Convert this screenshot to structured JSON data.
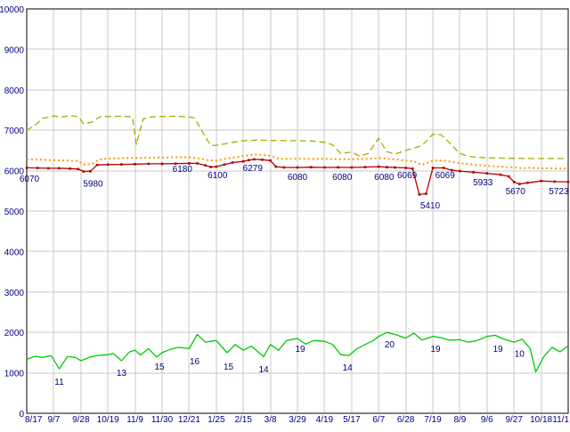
{
  "chart_data": {
    "type": "line",
    "title": "",
    "ylim": [
      0,
      10000
    ],
    "grid": true,
    "grid_color": "#c8c8c8",
    "axis_color": "#000000",
    "label_color": "#000080",
    "tick_label_color": "#000080",
    "y_tick_labels": [
      "10000",
      "9000",
      "8000",
      "7000",
      "6000",
      "5000",
      "4000",
      "3000",
      "2000",
      "1000",
      "0"
    ],
    "x_tick_labels": [
      "8/17",
      "9/7",
      "9/28",
      "10/19",
      "11/9",
      "11/30",
      "12/21",
      "1/25",
      "2/15",
      "3/8",
      "3/29",
      "4/19",
      "5/17",
      "6/7",
      "6/28",
      "7/19",
      "8/9",
      "9/6",
      "9/27",
      "10/18",
      "11/1"
    ],
    "series": [
      {
        "name": "upper-dashed-olive",
        "color": "#aaaa00",
        "style": "dashed",
        "width": 1.3,
        "markers": false,
        "points": [
          [
            0,
            7000
          ],
          [
            0.3,
            7120
          ],
          [
            0.6,
            7300
          ],
          [
            1,
            7350
          ],
          [
            1.3,
            7330
          ],
          [
            1.6,
            7360
          ],
          [
            1.9,
            7340
          ],
          [
            2.1,
            7160
          ],
          [
            2.4,
            7200
          ],
          [
            2.7,
            7330
          ],
          [
            3,
            7340
          ],
          [
            3.5,
            7345
          ],
          [
            3.9,
            7330
          ],
          [
            4.05,
            6650
          ],
          [
            4.3,
            7280
          ],
          [
            4.6,
            7330
          ],
          [
            5,
            7340
          ],
          [
            5.5,
            7345
          ],
          [
            6,
            7330
          ],
          [
            6.2,
            7300
          ],
          [
            6.5,
            6950
          ],
          [
            6.8,
            6620
          ],
          [
            7,
            6630
          ],
          [
            7.3,
            6660
          ],
          [
            7.6,
            6700
          ],
          [
            8,
            6740
          ],
          [
            8.5,
            6755
          ],
          [
            9,
            6750
          ],
          [
            9.5,
            6745
          ],
          [
            10,
            6740
          ],
          [
            10.5,
            6735
          ],
          [
            11,
            6700
          ],
          [
            11.3,
            6640
          ],
          [
            11.6,
            6420
          ],
          [
            12,
            6460
          ],
          [
            12.3,
            6360
          ],
          [
            12.6,
            6420
          ],
          [
            13,
            6800
          ],
          [
            13.3,
            6470
          ],
          [
            13.6,
            6410
          ],
          [
            14,
            6500
          ],
          [
            14.3,
            6560
          ],
          [
            14.6,
            6620
          ],
          [
            15,
            6900
          ],
          [
            15.3,
            6890
          ],
          [
            15.6,
            6700
          ],
          [
            16,
            6420
          ],
          [
            16.3,
            6360
          ],
          [
            16.6,
            6330
          ],
          [
            17,
            6320
          ],
          [
            17.5,
            6310
          ],
          [
            18,
            6305
          ],
          [
            18.5,
            6300
          ],
          [
            19,
            6300
          ],
          [
            19.5,
            6300
          ],
          [
            20,
            6300
          ]
        ]
      },
      {
        "name": "mid-dotted-orange",
        "color": "#ff9900",
        "style": "dotted",
        "width": 2,
        "markers": false,
        "points": [
          [
            0,
            6280
          ],
          [
            0.5,
            6270
          ],
          [
            1,
            6260
          ],
          [
            1.5,
            6250
          ],
          [
            1.9,
            6240
          ],
          [
            2.1,
            6150
          ],
          [
            2.4,
            6160
          ],
          [
            2.7,
            6280
          ],
          [
            3,
            6300
          ],
          [
            3.5,
            6310
          ],
          [
            4,
            6310
          ],
          [
            4.5,
            6320
          ],
          [
            5,
            6325
          ],
          [
            5.5,
            6330
          ],
          [
            6,
            6330
          ],
          [
            6.4,
            6300
          ],
          [
            6.7,
            6260
          ],
          [
            7,
            6250
          ],
          [
            7.4,
            6300
          ],
          [
            7.7,
            6330
          ],
          [
            8,
            6360
          ],
          [
            8.4,
            6400
          ],
          [
            8.7,
            6390
          ],
          [
            9,
            6370
          ],
          [
            9.3,
            6300
          ],
          [
            9.6,
            6290
          ],
          [
            10,
            6295
          ],
          [
            10.5,
            6290
          ],
          [
            11,
            6290
          ],
          [
            11.5,
            6285
          ],
          [
            12,
            6285
          ],
          [
            12.5,
            6290
          ],
          [
            13,
            6310
          ],
          [
            13.4,
            6290
          ],
          [
            13.7,
            6270
          ],
          [
            14,
            6250
          ],
          [
            14.3,
            6230
          ],
          [
            14.6,
            6140
          ],
          [
            15,
            6250
          ],
          [
            15.4,
            6250
          ],
          [
            15.7,
            6220
          ],
          [
            16,
            6180
          ],
          [
            16.5,
            6150
          ],
          [
            17,
            6120
          ],
          [
            17.5,
            6100
          ],
          [
            18,
            6080
          ],
          [
            18.3,
            6060
          ],
          [
            18.6,
            6070
          ],
          [
            19,
            6060
          ],
          [
            19.5,
            6055
          ],
          [
            20,
            6050
          ]
        ]
      },
      {
        "name": "main-dark-red",
        "color": "#b30000",
        "style": "solid",
        "width": 1.3,
        "markers": true,
        "points": [
          [
            0,
            6070
          ],
          [
            0.4,
            6065
          ],
          [
            0.8,
            6060
          ],
          [
            1.2,
            6060
          ],
          [
            1.6,
            6050
          ],
          [
            1.9,
            6040
          ],
          [
            2.1,
            5980
          ],
          [
            2.35,
            5985
          ],
          [
            2.6,
            6140
          ],
          [
            3,
            6150
          ],
          [
            3.5,
            6155
          ],
          [
            4,
            6160
          ],
          [
            4.5,
            6170
          ],
          [
            5,
            6170
          ],
          [
            5.5,
            6175
          ],
          [
            6,
            6180
          ],
          [
            6.3,
            6180
          ],
          [
            6.6,
            6130
          ],
          [
            6.8,
            6090
          ],
          [
            7,
            6100
          ],
          [
            7.3,
            6150
          ],
          [
            7.6,
            6200
          ],
          [
            8,
            6230
          ],
          [
            8.2,
            6260
          ],
          [
            8.4,
            6279
          ],
          [
            8.7,
            6270
          ],
          [
            9,
            6250
          ],
          [
            9.2,
            6100
          ],
          [
            9.5,
            6080
          ],
          [
            10,
            6080
          ],
          [
            10.5,
            6085
          ],
          [
            11,
            6080
          ],
          [
            11.5,
            6082
          ],
          [
            12,
            6080
          ],
          [
            12.5,
            6088
          ],
          [
            13,
            6100
          ],
          [
            13.3,
            6085
          ],
          [
            13.6,
            6080
          ],
          [
            14,
            6069
          ],
          [
            14.25,
            6050
          ],
          [
            14.5,
            5410
          ],
          [
            14.75,
            5430
          ],
          [
            15,
            6069
          ],
          [
            15.4,
            6069
          ],
          [
            15.7,
            6010
          ],
          [
            16,
            5990
          ],
          [
            16.5,
            5960
          ],
          [
            17,
            5933
          ],
          [
            17.5,
            5900
          ],
          [
            17.8,
            5860
          ],
          [
            18,
            5720
          ],
          [
            18.2,
            5670
          ],
          [
            18.5,
            5700
          ],
          [
            19,
            5745
          ],
          [
            19.5,
            5730
          ],
          [
            20,
            5723
          ]
        ]
      },
      {
        "name": "lower-green",
        "color": "#00cc00",
        "style": "solid",
        "width": 1.3,
        "markers": false,
        "points": [
          [
            0,
            1330
          ],
          [
            0.3,
            1410
          ],
          [
            0.6,
            1380
          ],
          [
            0.9,
            1430
          ],
          [
            1.2,
            1100
          ],
          [
            1.5,
            1400
          ],
          [
            1.8,
            1380
          ],
          [
            2,
            1300
          ],
          [
            2.3,
            1380
          ],
          [
            2.6,
            1430
          ],
          [
            3,
            1450
          ],
          [
            3.2,
            1480
          ],
          [
            3.5,
            1300
          ],
          [
            3.8,
            1520
          ],
          [
            4,
            1560
          ],
          [
            4.2,
            1440
          ],
          [
            4.5,
            1600
          ],
          [
            4.8,
            1390
          ],
          [
            5,
            1500
          ],
          [
            5.3,
            1580
          ],
          [
            5.6,
            1630
          ],
          [
            6,
            1600
          ],
          [
            6.3,
            1950
          ],
          [
            6.6,
            1760
          ],
          [
            7,
            1800
          ],
          [
            7.4,
            1500
          ],
          [
            7.7,
            1700
          ],
          [
            8,
            1560
          ],
          [
            8.3,
            1660
          ],
          [
            8.75,
            1400
          ],
          [
            9,
            1700
          ],
          [
            9.3,
            1560
          ],
          [
            9.6,
            1800
          ],
          [
            10,
            1850
          ],
          [
            10.3,
            1710
          ],
          [
            10.6,
            1800
          ],
          [
            11,
            1780
          ],
          [
            11.3,
            1700
          ],
          [
            11.6,
            1450
          ],
          [
            11.9,
            1430
          ],
          [
            12.2,
            1600
          ],
          [
            12.5,
            1700
          ],
          [
            12.8,
            1800
          ],
          [
            13,
            1900
          ],
          [
            13.3,
            2000
          ],
          [
            13.6,
            1950
          ],
          [
            14,
            1860
          ],
          [
            14.3,
            1980
          ],
          [
            14.6,
            1810
          ],
          [
            15,
            1900
          ],
          [
            15.3,
            1870
          ],
          [
            15.6,
            1810
          ],
          [
            16,
            1820
          ],
          [
            16.3,
            1760
          ],
          [
            16.6,
            1790
          ],
          [
            17,
            1900
          ],
          [
            17.3,
            1930
          ],
          [
            17.6,
            1840
          ],
          [
            18,
            1760
          ],
          [
            18.3,
            1830
          ],
          [
            18.6,
            1600
          ],
          [
            18.8,
            1020
          ],
          [
            19.1,
            1400
          ],
          [
            19.4,
            1630
          ],
          [
            19.7,
            1520
          ],
          [
            20,
            1670
          ]
        ]
      }
    ],
    "point_labels": [
      {
        "t": 0.1,
        "v": 5790,
        "text": "6070"
      },
      {
        "t": 2.45,
        "v": 5670,
        "text": "5980"
      },
      {
        "t": 5.75,
        "v": 6030,
        "text": "6180"
      },
      {
        "t": 7.05,
        "v": 5880,
        "text": "6100"
      },
      {
        "t": 8.35,
        "v": 6060,
        "text": "6279"
      },
      {
        "t": 10.0,
        "v": 5840,
        "text": "6080"
      },
      {
        "t": 11.65,
        "v": 5840,
        "text": "6080"
      },
      {
        "t": 13.2,
        "v": 5840,
        "text": "6080"
      },
      {
        "t": 14.05,
        "v": 5880,
        "text": "6069"
      },
      {
        "t": 15.45,
        "v": 5880,
        "text": "6069"
      },
      {
        "t": 14.9,
        "v": 5130,
        "text": "5410"
      },
      {
        "t": 16.85,
        "v": 5700,
        "text": "5933"
      },
      {
        "t": 18.05,
        "v": 5480,
        "text": "5670"
      },
      {
        "t": 19.65,
        "v": 5480,
        "text": "5723"
      },
      {
        "t": 1.2,
        "v": 770,
        "text": "11"
      },
      {
        "t": 3.5,
        "v": 990,
        "text": "13"
      },
      {
        "t": 4.9,
        "v": 1150,
        "text": "15"
      },
      {
        "t": 6.2,
        "v": 1280,
        "text": "16"
      },
      {
        "t": 7.45,
        "v": 1150,
        "text": "15"
      },
      {
        "t": 8.75,
        "v": 1080,
        "text": "14"
      },
      {
        "t": 10.1,
        "v": 1590,
        "text": "19"
      },
      {
        "t": 11.85,
        "v": 1120,
        "text": "14"
      },
      {
        "t": 13.4,
        "v": 1700,
        "text": "20"
      },
      {
        "t": 15.1,
        "v": 1590,
        "text": "19"
      },
      {
        "t": 17.4,
        "v": 1590,
        "text": "19"
      },
      {
        "t": 18.2,
        "v": 1460,
        "text": "10"
      }
    ]
  }
}
